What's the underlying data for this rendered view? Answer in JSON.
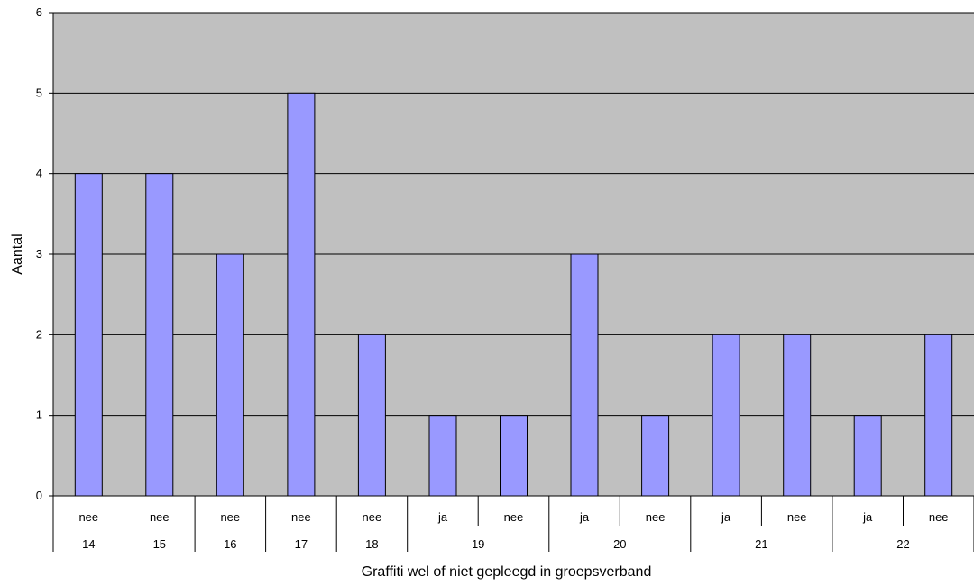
{
  "chart_data": {
    "type": "bar",
    "xlabel": "Graffiti wel of niet gepleegd in groepsverband",
    "ylabel": "Aantal",
    "ylim": [
      0,
      6
    ],
    "yticks": [
      "0",
      "1",
      "2",
      "3",
      "4",
      "5",
      "6"
    ],
    "grid": true,
    "legend": "none",
    "bar_color": "#9999ff",
    "plot_background": "#c0c0c0",
    "categories": [
      {
        "label": "nee",
        "group": "14"
      },
      {
        "label": "nee",
        "group": "15"
      },
      {
        "label": "nee",
        "group": "16"
      },
      {
        "label": "nee",
        "group": "17"
      },
      {
        "label": "nee",
        "group": "18"
      },
      {
        "label": "ja",
        "group": "19"
      },
      {
        "label": "nee",
        "group": "19"
      },
      {
        "label": "ja",
        "group": "20"
      },
      {
        "label": "nee",
        "group": "20"
      },
      {
        "label": "ja",
        "group": "21"
      },
      {
        "label": "nee",
        "group": "21"
      },
      {
        "label": "ja",
        "group": "22"
      },
      {
        "label": "nee",
        "group": "22"
      }
    ],
    "groups": [
      "14",
      "15",
      "16",
      "17",
      "18",
      "19",
      "20",
      "21",
      "22"
    ],
    "values": [
      4,
      4,
      3,
      5,
      2,
      1,
      1,
      3,
      1,
      2,
      2,
      1,
      2
    ]
  }
}
